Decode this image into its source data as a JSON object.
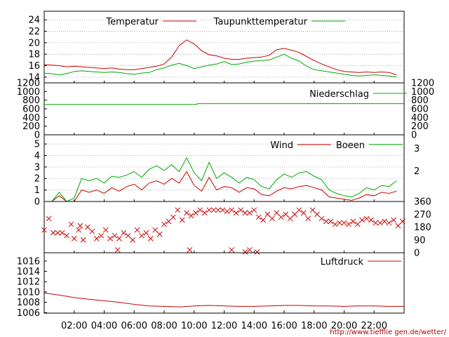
{
  "footer_url": "http://www.tiefflie gen.de/wetter/",
  "colors": {
    "red": "#cc0000",
    "green": "#00aa00",
    "grid": "#9a9a9a"
  },
  "chart_data": [
    {
      "type": "line",
      "panel": "temperature",
      "ylim": [
        13,
        25.5
      ],
      "yticks": [
        "14",
        "16",
        "18",
        "20",
        "22",
        "24"
      ],
      "legend_placement": "top",
      "grid": true,
      "x": [
        0,
        0.5,
        1,
        1.5,
        2,
        2.5,
        3,
        3.5,
        4,
        4.5,
        5,
        5.5,
        6,
        6.5,
        7,
        7.5,
        8,
        8.5,
        9,
        9.5,
        10,
        10.5,
        11,
        11.5,
        12,
        12.5,
        13,
        13.5,
        14,
        14.5,
        15,
        15.5,
        16,
        16.5,
        17,
        17.5,
        18,
        18.5,
        19,
        19.5,
        20,
        20.5,
        21,
        21.5,
        22,
        22.5,
        23,
        23.5
      ],
      "series": [
        {
          "name": "Temperatur",
          "color": "red",
          "values": [
            16.2,
            16.1,
            16,
            15.8,
            15.9,
            15.8,
            15.7,
            15.6,
            15.5,
            15.6,
            15.4,
            15.3,
            15.3,
            15.5,
            15.7,
            15.9,
            16.3,
            17.5,
            19.5,
            20.5,
            19.8,
            18.6,
            17.9,
            17.7,
            17.3,
            17.1,
            17.1,
            17.3,
            17.4,
            17.5,
            17.8,
            18.8,
            19,
            18.7,
            18.3,
            17.6,
            16.9,
            16.3,
            15.8,
            15.3,
            15,
            14.9,
            14.8,
            14.9,
            14.8,
            14.9,
            14.8,
            14.4
          ]
        },
        {
          "name": "Taupunkttemperatur",
          "color": "green",
          "values": [
            14.7,
            14.6,
            14.4,
            14.6,
            15,
            15.1,
            15,
            14.9,
            14.8,
            14.9,
            14.8,
            14.6,
            14.5,
            14.7,
            14.8,
            15.3,
            15.6,
            16.1,
            16.4,
            16,
            15.5,
            15.8,
            16.1,
            16.3,
            16.7,
            16.2,
            16.3,
            16.6,
            16.8,
            16.9,
            17,
            17.5,
            18,
            17.3,
            16.8,
            15.9,
            15.3,
            15.1,
            14.9,
            14.7,
            14.5,
            14.3,
            14.2,
            14.3,
            14.4,
            14.3,
            14.2,
            14
          ]
        }
      ]
    },
    {
      "type": "line",
      "panel": "precipitation",
      "ylim": [
        0,
        1200
      ],
      "yticks": [
        "0",
        "200",
        "400",
        "600",
        "800",
        "1000",
        "1200"
      ],
      "legend_placement": "top",
      "series": [
        {
          "name": "Niederschlag",
          "color": "green",
          "x": [
            0,
            10.2,
            10.2,
            24
          ],
          "values": [
            700,
            700,
            720,
            720
          ]
        }
      ]
    },
    {
      "type": "line",
      "panel": "wind",
      "ylim": [
        0,
        5.8
      ],
      "yticks": [
        "0",
        "1",
        "2",
        "3",
        "4",
        "5"
      ],
      "right_ticks": [
        "2",
        "3"
      ],
      "legend_placement": "top",
      "grid": true,
      "x": [
        0,
        0.5,
        1,
        1.5,
        2,
        2.5,
        3,
        3.5,
        4,
        4.5,
        5,
        5.5,
        6,
        6.5,
        7,
        7.5,
        8,
        8.5,
        9,
        9.5,
        10,
        10.5,
        11,
        11.5,
        12,
        12.5,
        13,
        13.5,
        14,
        14.5,
        15,
        15.5,
        16,
        16.5,
        17,
        17.5,
        18,
        18.5,
        19,
        19.5,
        20,
        20.5,
        21,
        21.5,
        22,
        22.5,
        23,
        23.5
      ],
      "series": [
        {
          "name": "Wind",
          "color": "red",
          "values": [
            0,
            0,
            0.5,
            0,
            0,
            1,
            0.8,
            1,
            0.7,
            1.2,
            0.9,
            1.3,
            1.5,
            1,
            1.6,
            1.8,
            1.5,
            2,
            1.6,
            2.6,
            1.4,
            0.9,
            2.1,
            1,
            1.3,
            1.2,
            0.8,
            1.2,
            1.1,
            0.6,
            0.5,
            0.9,
            1.2,
            1.1,
            1.3,
            1.4,
            1.2,
            1,
            0.4,
            0.3,
            0.2,
            0.1,
            0.3,
            0.6,
            0.5,
            0.8,
            0.7,
            0.9
          ]
        },
        {
          "name": "Boeen",
          "color": "green",
          "values": [
            0,
            0,
            0.8,
            0,
            0.3,
            2,
            1.8,
            2,
            1.6,
            2.2,
            2.1,
            2.3,
            2.6,
            2.1,
            2.8,
            3.1,
            2.7,
            3.2,
            2.6,
            3.8,
            2.5,
            1.8,
            3.4,
            2,
            2.5,
            2.1,
            1.6,
            2.1,
            1.9,
            1.3,
            1.1,
            1.9,
            2.4,
            2.1,
            2.5,
            2.6,
            2.2,
            1.9,
            1,
            0.7,
            0.5,
            0.4,
            0.7,
            1.2,
            1,
            1.4,
            1.3,
            1.8
          ]
        }
      ]
    },
    {
      "type": "scatter",
      "panel": "wind-direction",
      "ylim": [
        0,
        360
      ],
      "right_ticks": [
        "0",
        "90",
        "180",
        "270",
        "360"
      ],
      "series": [
        {
          "name": "",
          "color": "red",
          "x": [
            0,
            0.3,
            0.6,
            0.9,
            1.2,
            1.5,
            1.8,
            2,
            2.3,
            2.6,
            2.9,
            3.2,
            3.5,
            3.8,
            4.1,
            4.4,
            4.7,
            5,
            5.3,
            5.6,
            5.9,
            6.2,
            6.5,
            6.8,
            7.1,
            7.4,
            7.7,
            8,
            8.3,
            8.6,
            8.9,
            9.2,
            9.5,
            9.8,
            10.1,
            10.4,
            10.7,
            11,
            11.3,
            11.6,
            11.9,
            12.2,
            12.5,
            12.8,
            13.1,
            13.4,
            13.7,
            14,
            14.3,
            14.6,
            14.9,
            15.2,
            15.5,
            15.8,
            16.1,
            16.4,
            16.7,
            17,
            17.3,
            17.6,
            17.9,
            18.2,
            18.5,
            18.8,
            19.1,
            19.4,
            19.7,
            20,
            20.3,
            20.6,
            20.9,
            21.2,
            21.5,
            21.8,
            22.1,
            22.4,
            22.7,
            23,
            23.3,
            23.6,
            23.9,
            2.4,
            4.9,
            9.7,
            12.5,
            13.4,
            13.7,
            14.2
          ],
          "values": [
            160,
            240,
            140,
            140,
            140,
            120,
            200,
            100,
            160,
            90,
            180,
            150,
            100,
            120,
            160,
            100,
            120,
            100,
            140,
            120,
            90,
            160,
            120,
            140,
            100,
            160,
            130,
            200,
            220,
            250,
            300,
            230,
            280,
            260,
            280,
            300,
            280,
            300,
            300,
            300,
            300,
            290,
            300,
            280,
            300,
            280,
            280,
            300,
            250,
            230,
            270,
            240,
            280,
            250,
            270,
            240,
            270,
            300,
            280,
            240,
            300,
            270,
            240,
            220,
            220,
            200,
            210,
            210,
            200,
            220,
            200,
            230,
            240,
            230,
            210,
            210,
            220,
            210,
            230,
            190,
            220,
            190,
            20,
            20,
            20,
            5,
            20,
            5
          ]
        }
      ]
    },
    {
      "type": "line",
      "panel": "pressure",
      "ylim": [
        1005.9,
        1017.6
      ],
      "yticks": [
        "1006",
        "1008",
        "1010",
        "1012",
        "1014",
        "1016"
      ],
      "legend_placement": "top",
      "xticks": [
        "02:00",
        "04:00",
        "06:00",
        "08:00",
        "10:00",
        "12:00",
        "14:00",
        "16:00",
        "18:00",
        "20:00",
        "22:00"
      ],
      "x": [
        0,
        1,
        2,
        3,
        4,
        5,
        6,
        7,
        8,
        9,
        10,
        11,
        12,
        13,
        14,
        15,
        16,
        17,
        18,
        19,
        20,
        21,
        22,
        23,
        24
      ],
      "series": [
        {
          "name": "Luftdruck",
          "color": "red",
          "values": [
            1009.8,
            1009.4,
            1008.9,
            1008.6,
            1008.3,
            1008,
            1007.6,
            1007.3,
            1007.2,
            1007.1,
            1007.3,
            1007.4,
            1007.3,
            1007.2,
            1007.2,
            1007.3,
            1007.4,
            1007.4,
            1007.3,
            1007.3,
            1007.2,
            1007.3,
            1007.3,
            1007.2,
            1007.2
          ]
        }
      ]
    }
  ]
}
